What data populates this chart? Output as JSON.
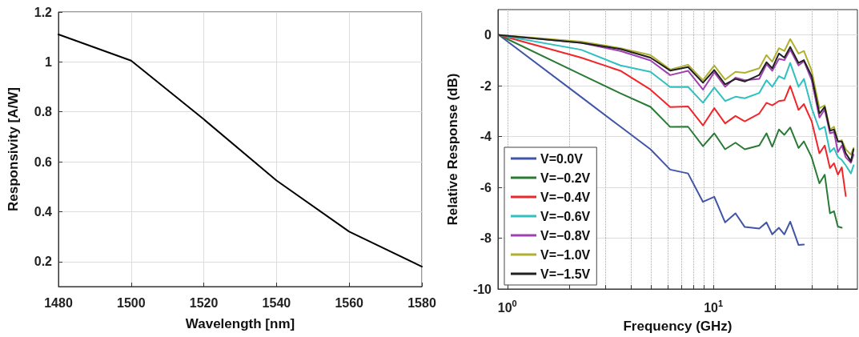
{
  "chart_data": [
    {
      "type": "line",
      "xlabel": "Wavelength [nm]",
      "ylabel": "Responsivity [A/W]",
      "x": [
        1480,
        1500,
        1520,
        1540,
        1560,
        1580
      ],
      "series": [
        {
          "color": "#000000",
          "values": [
            1.11,
            1.005,
            0.77,
            0.525,
            0.32,
            0.18
          ]
        }
      ],
      "xlim": [
        1480,
        1580
      ],
      "xticks": [
        1480,
        1500,
        1520,
        1540,
        1560,
        1580
      ],
      "ylim": [
        0.1,
        1.2
      ],
      "yticks": [
        0.2,
        0.4,
        0.6,
        0.8,
        1,
        1.2
      ],
      "grid": true,
      "marker": "none",
      "legend": false
    },
    {
      "type": "line",
      "xlabel": "Frequency (GHz)",
      "ylabel": "Relative Response (dB)",
      "log": "x",
      "x": [
        0.91,
        2.28,
        3.54,
        4.95,
        6.17,
        7.53,
        8.9,
        10.1,
        11.4,
        12.8,
        14.2,
        16.7,
        18.1,
        19.3,
        20.8,
        22.1,
        23.6,
        25.9,
        27.5,
        30,
        32.7,
        34.7,
        36.8,
        38.5,
        40.2,
        42,
        43.9,
        46.5,
        47.9
      ],
      "series": [
        {
          "name": "V=0.0V",
          "color": "#4055a8",
          "values": [
            0,
            -2.44,
            -3.61,
            -4.5,
            -5.3,
            -5.45,
            -6.57,
            -6.37,
            -7.38,
            -7.02,
            -7.56,
            -7.62,
            -7.38,
            -7.85,
            -7.59,
            -7.85,
            -7.35,
            -8.27,
            -8.25,
            null,
            null,
            null,
            null,
            null,
            null,
            null,
            null,
            null,
            null
          ]
        },
        {
          "name": "V=−0.2V",
          "color": "#2a7a35",
          "values": [
            0,
            -1.56,
            -2.3,
            -2.83,
            -3.62,
            -3.61,
            -4.38,
            -3.87,
            -4.5,
            -4.24,
            -4.5,
            -4.35,
            -3.87,
            -4.4,
            -3.72,
            -3.93,
            -3.64,
            -4.45,
            -4.19,
            -4.82,
            -5.84,
            -5.5,
            -7.02,
            -6.94,
            -7.54,
            -7.59,
            null,
            null,
            null
          ]
        },
        {
          "name": "V=−0.4V",
          "color": "#f0262a",
          "values": [
            0,
            -0.89,
            -1.41,
            -2.15,
            -2.84,
            -2.81,
            -3.56,
            -2.88,
            -3.48,
            -3.19,
            -3.4,
            -3.09,
            -2.67,
            -2.77,
            -2.6,
            -2.57,
            -2.01,
            -2.95,
            -2.72,
            -3.4,
            -4.66,
            -4.35,
            -5.24,
            -5.05,
            -5.5,
            -5.21,
            -6.34,
            null,
            null
          ]
        },
        {
          "name": "V=−0.6V",
          "color": "#30c0c0",
          "values": [
            0,
            -0.58,
            -1.2,
            -1.45,
            -2.05,
            -2.04,
            -2.67,
            -2.07,
            -2.6,
            -2.43,
            -2.49,
            -2.28,
            -1.78,
            -2.04,
            -1.62,
            -1.73,
            -1.1,
            -2.04,
            -1.73,
            -2.88,
            -3.72,
            -3.61,
            -4.61,
            -4.45,
            -4.8,
            -4.92,
            -5.13,
            -5.45,
            -5.13
          ]
        },
        {
          "name": "V=−0.8V",
          "color": "#a040b0",
          "values": [
            0,
            -0.31,
            -0.63,
            -1,
            -1.58,
            -1.41,
            -2.15,
            -1.47,
            -2.04,
            -1.68,
            -1.78,
            -1.73,
            -1.15,
            -1.41,
            -0.94,
            -0.99,
            -0.58,
            -1.2,
            -1.03,
            -1.78,
            -3.25,
            -2.93,
            -3.87,
            -3.82,
            -4.61,
            -4.35,
            -4.82,
            -5.03,
            -4.71
          ]
        },
        {
          "name": "V=−1.0V",
          "color": "#b0b030",
          "values": [
            0,
            -0.26,
            -0.52,
            -0.79,
            -1.36,
            -1.17,
            -1.78,
            -1.2,
            -1.76,
            -1.45,
            -1.49,
            -1.31,
            -0.79,
            -1.05,
            -0.52,
            -0.63,
            -0.16,
            -0.73,
            -0.63,
            -1.41,
            -2.88,
            -2.77,
            -3.72,
            -3.61,
            -4.19,
            -4.14,
            -4.5,
            -4.71,
            -4.45
          ]
        },
        {
          "name": "V=−1.5V",
          "color": "#202020",
          "values": [
            0,
            -0.31,
            -0.55,
            -0.89,
            -1.4,
            -1.26,
            -1.88,
            -1.38,
            -1.94,
            -1.73,
            -1.83,
            -1.57,
            -1.07,
            -1.31,
            -0.73,
            -0.89,
            -0.47,
            -1.1,
            -0.99,
            -1.62,
            -3.09,
            -2.83,
            -3.77,
            -3.72,
            -4.19,
            -4.19,
            -4.66,
            -4.97,
            -4.5
          ]
        }
      ],
      "xlim": [
        0.9,
        50
      ],
      "xticks": [
        {
          "value": 1,
          "label": "10$^{0}$"
        },
        {
          "value": 2,
          "label": null
        },
        {
          "value": 3,
          "label": null
        },
        {
          "value": 4,
          "label": null
        },
        {
          "value": 5,
          "label": null
        },
        {
          "value": 6,
          "label": null
        },
        {
          "value": 7,
          "label": null
        },
        {
          "value": 8,
          "label": null
        },
        {
          "value": 9,
          "label": null
        },
        {
          "value": 10,
          "label": "10$^{1}$"
        },
        {
          "value": 20,
          "label": null
        },
        {
          "value": 30,
          "label": null
        },
        {
          "value": 40,
          "label": null
        }
      ],
      "ylim": [
        -10,
        1
      ],
      "yticks": [
        -10,
        -8,
        -6,
        -4,
        -2,
        0
      ],
      "grid": true,
      "marker": "none",
      "legend": "bottom left"
    }
  ]
}
